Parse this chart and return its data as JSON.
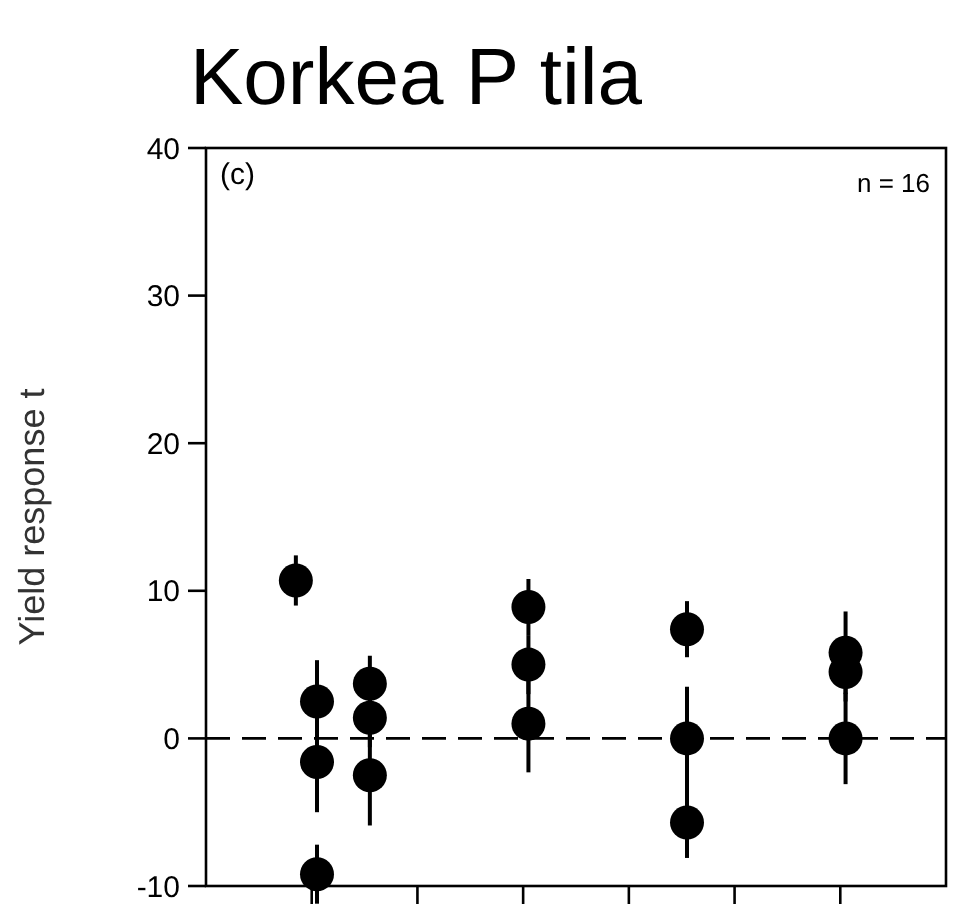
{
  "chart_data": {
    "type": "scatter",
    "title": "Korkea P tila",
    "ylabel": "Yield response t",
    "annotations": [
      "(c)",
      "n = 16"
    ],
    "categories": [
      null,
      null,
      null,
      null,
      null,
      null,
      null,
      null,
      null,
      null,
      null,
      null,
      null,
      null,
      null,
      null,
      null,
      null,
      null,
      null,
      null,
      null,
      null,
      null,
      null,
      null,
      null,
      null,
      null,
      null,
      null,
      null,
      null,
      null,
      null,
      null,
      null,
      null,
      null,
      null,
      null,
      null,
      null,
      null,
      null,
      null,
      null,
      null,
      null,
      null,
      null,
      null,
      null,
      null,
      null,
      null,
      null,
      null,
      null,
      null,
      null,
      null,
      null,
      null,
      null,
      null,
      null,
      null,
      null,
      null
    ],
    "ylim": [
      -10,
      40
    ],
    "yticks": [
      -10,
      0,
      10,
      20,
      30,
      40
    ],
    "tick_labels": "y",
    "marker": "circle",
    "ref_lines": [
      {
        "axis": "y",
        "value": 0,
        "line_style": "dashed",
        "color": "#000000"
      }
    ],
    "series": [
      {
        "color": "#000000",
        "values": [
          null,
          null,
          null,
          null,
          null,
          null,
          null,
          null,
          10.7,
          null,
          2.5,
          null,
          null,
          null,
          null,
          3.7,
          null,
          null,
          null,
          null,
          null,
          null,
          null,
          null,
          null,
          null,
          null,
          null,
          null,
          null,
          8.9,
          null,
          null,
          null,
          null,
          null,
          null,
          null,
          null,
          null,
          null,
          null,
          null,
          null,
          null,
          7.4,
          null,
          null,
          null,
          null,
          null,
          null,
          null,
          null,
          null,
          null,
          null,
          null,
          null,
          null,
          5.8,
          null,
          null,
          null,
          null,
          null,
          null,
          null,
          null,
          null
        ],
        "errors": [
          null,
          null,
          null,
          null,
          null,
          null,
          null,
          null,
          1.7,
          null,
          2.8,
          null,
          null,
          null,
          null,
          1.9,
          null,
          null,
          null,
          null,
          null,
          null,
          null,
          null,
          null,
          null,
          null,
          null,
          null,
          null,
          1.9,
          null,
          null,
          null,
          null,
          null,
          null,
          null,
          null,
          null,
          null,
          null,
          null,
          null,
          null,
          1.9,
          null,
          null,
          null,
          null,
          null,
          null,
          null,
          null,
          null,
          null,
          null,
          null,
          null,
          null,
          2.8,
          null,
          null,
          null,
          null,
          null,
          null,
          null,
          null,
          null
        ]
      },
      {
        "color": "#000000",
        "values": [
          null,
          null,
          null,
          null,
          null,
          null,
          null,
          null,
          null,
          null,
          -1.6,
          null,
          null,
          null,
          null,
          1.4,
          null,
          null,
          null,
          null,
          null,
          null,
          null,
          null,
          null,
          null,
          null,
          null,
          null,
          null,
          5.0,
          null,
          null,
          null,
          null,
          null,
          null,
          null,
          null,
          null,
          null,
          null,
          null,
          null,
          null,
          0,
          null,
          null,
          null,
          null,
          null,
          null,
          null,
          null,
          null,
          null,
          null,
          null,
          null,
          null,
          4.5,
          null,
          null,
          null,
          null,
          null,
          null,
          null,
          null,
          null
        ],
        "errors": [
          null,
          null,
          null,
          null,
          null,
          null,
          null,
          null,
          null,
          null,
          3.4,
          null,
          null,
          null,
          null,
          2.0,
          null,
          null,
          null,
          null,
          null,
          null,
          null,
          null,
          null,
          null,
          null,
          null,
          null,
          null,
          2.0,
          null,
          null,
          null,
          null,
          null,
          null,
          null,
          null,
          null,
          null,
          null,
          null,
          null,
          null,
          3.5,
          null,
          null,
          null,
          null,
          null,
          null,
          null,
          null,
          null,
          null,
          null,
          null,
          null,
          null,
          2.0,
          null,
          null,
          null,
          null,
          null,
          null,
          null,
          null,
          null
        ]
      },
      {
        "color": "#000000",
        "values": [
          null,
          null,
          null,
          null,
          null,
          null,
          null,
          null,
          null,
          null,
          -9.2,
          null,
          null,
          null,
          null,
          -2.5,
          null,
          null,
          null,
          null,
          null,
          null,
          null,
          null,
          null,
          null,
          null,
          null,
          null,
          null,
          1.0,
          null,
          null,
          null,
          null,
          null,
          null,
          null,
          null,
          null,
          null,
          null,
          null,
          null,
          null,
          -5.7,
          null,
          null,
          null,
          null,
          null,
          null,
          null,
          null,
          null,
          null,
          null,
          null,
          null,
          null,
          0,
          null,
          null,
          null,
          null,
          null,
          null,
          null,
          null,
          null
        ],
        "errors": [
          null,
          null,
          null,
          null,
          null,
          null,
          null,
          null,
          null,
          null,
          2.0,
          null,
          null,
          null,
          null,
          3.4,
          null,
          null,
          null,
          null,
          null,
          null,
          null,
          null,
          null,
          null,
          null,
          null,
          null,
          null,
          3.3,
          null,
          null,
          null,
          null,
          null,
          null,
          null,
          null,
          null,
          null,
          null,
          null,
          null,
          null,
          2.4,
          null,
          null,
          null,
          null,
          null,
          null,
          null,
          null,
          null,
          null,
          null,
          null,
          null,
          null,
          3.1,
          null,
          null,
          null,
          null,
          null,
          null,
          null,
          null,
          null
        ]
      }
    ]
  }
}
